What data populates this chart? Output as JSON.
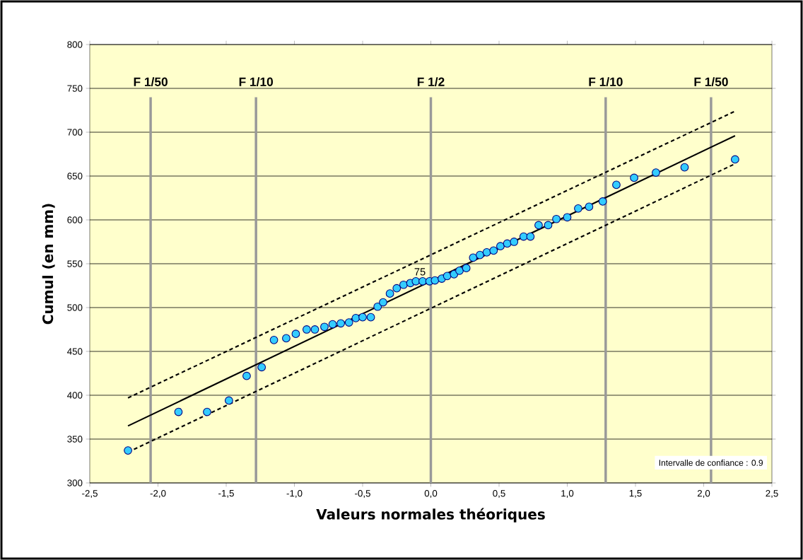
{
  "chart_data": {
    "type": "scatter",
    "xlabel": "Valeurs normales théoriques",
    "ylabel": "Cumul (en mm)",
    "xlim": [
      -2.5,
      2.5
    ],
    "ylim": [
      300,
      800
    ],
    "xticks": [
      {
        "value": -2.5,
        "label": "-2,5"
      },
      {
        "value": -2,
        "label": "-2,0"
      },
      {
        "value": -1.5,
        "label": "-1,5"
      },
      {
        "value": -1,
        "label": "-1,0"
      },
      {
        "value": -0.5,
        "label": "-0,5"
      },
      {
        "value": 0,
        "label": "0,0"
      },
      {
        "value": 0.5,
        "label": "0,5"
      },
      {
        "value": 1,
        "label": "1,0"
      },
      {
        "value": 1.5,
        "label": "1,5"
      },
      {
        "value": 2,
        "label": "2,0"
      },
      {
        "value": 2.5,
        "label": "2,5"
      }
    ],
    "yticks": [
      300,
      350,
      400,
      450,
      500,
      550,
      600,
      650,
      700,
      750,
      800
    ],
    "grid": "y",
    "series": [
      {
        "color": "#33ccff",
        "marker": "circle",
        "x": [
          -2.22,
          -1.85,
          -1.64,
          -1.48,
          -1.35,
          -1.24,
          -1.15,
          -1.06,
          -0.99,
          -0.91,
          -0.85,
          -0.78,
          -0.72,
          -0.66,
          -0.6,
          -0.55,
          -0.5,
          -0.44,
          -0.39,
          -0.35,
          -0.3,
          -0.25,
          -0.2,
          -0.15,
          -0.11,
          -0.06,
          -0.01,
          0.03,
          0.08,
          0.12,
          0.17,
          0.21,
          0.26,
          0.31,
          0.36,
          0.41,
          0.46,
          0.51,
          0.56,
          0.61,
          0.68,
          0.73,
          0.79,
          0.86,
          0.92,
          1.0,
          1.08,
          1.16,
          1.26,
          1.36,
          1.49,
          1.65,
          1.86,
          2.23
        ],
        "values": [
          337,
          381,
          381,
          394,
          422,
          432,
          463,
          465,
          470,
          475,
          475,
          478,
          481,
          482,
          483,
          488,
          489,
          489,
          501,
          506,
          516,
          522,
          526,
          528,
          530,
          530,
          530,
          531,
          533,
          536,
          538,
          542,
          545,
          557,
          560,
          563,
          565,
          570,
          573,
          575,
          581,
          581,
          594,
          594,
          601,
          603,
          613,
          615,
          621,
          640,
          648,
          654,
          660,
          669
        ]
      },
      {
        "type": "line",
        "color": "#000000",
        "marker": "none",
        "line_style": "solid",
        "x": [
          -2.22,
          2.23
        ],
        "values": [
          365,
          696
        ]
      },
      {
        "type": "line",
        "color": "#000000",
        "marker": "none",
        "line_style": "dashed",
        "x": [
          -2.22,
          2.23
        ],
        "values": [
          397,
          724
        ]
      },
      {
        "type": "line",
        "color": "#000000",
        "marker": "none",
        "line_style": "dashed",
        "x": [
          -2.22,
          2.23
        ],
        "values": [
          335,
          664
        ]
      }
    ],
    "ref_lines": [
      {
        "axis": "x",
        "value": -2.054,
        "label": "F 1/50",
        "color": "#999999"
      },
      {
        "axis": "x",
        "value": -1.2816,
        "label": "F 1/10",
        "color": "#999999"
      },
      {
        "axis": "x",
        "value": 0,
        "label": "F 1/2",
        "color": "#999999"
      },
      {
        "axis": "x",
        "value": 1.2816,
        "label": "F 1/10",
        "color": "#999999"
      },
      {
        "axis": "x",
        "value": 2.054,
        "label": "F 1/50",
        "color": "#999999"
      }
    ],
    "annotations": [
      {
        "text": "75",
        "x": -0.08,
        "y": 530
      },
      "Intervalle de confiance : 0.9"
    ]
  }
}
